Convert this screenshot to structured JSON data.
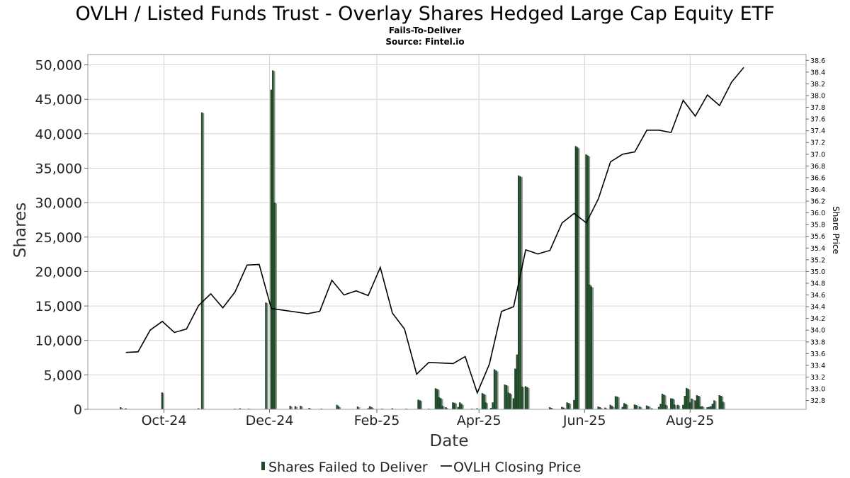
{
  "chart_data": {
    "type": "bar",
    "title": "OVLH / Listed Funds Trust - Overlay Shares Hedged Large Cap Equity ETF",
    "subtitle_lines": [
      "Fails-To-Deliver",
      "Source: Fintel.io"
    ],
    "xlabel": "Date",
    "ylabel": "Shares",
    "y2label": "Share Price",
    "ylim": [
      0,
      51500
    ],
    "yticks": [
      0,
      5000,
      10000,
      15000,
      20000,
      25000,
      30000,
      35000,
      40000,
      45000,
      50000
    ],
    "ytick_labels": [
      "0",
      "5,000",
      "10,000",
      "15,000",
      "20,000",
      "25,000",
      "30,000",
      "35,000",
      "40,000",
      "45,000",
      "50,000"
    ],
    "y2lim": [
      32.65,
      38.7
    ],
    "y2ticks": [
      32.8,
      33.0,
      33.2,
      33.4,
      33.6,
      33.8,
      34.0,
      34.2,
      34.4,
      34.6,
      34.8,
      35.0,
      35.2,
      35.4,
      35.6,
      35.8,
      36.0,
      36.2,
      36.4,
      36.6,
      36.8,
      37.0,
      37.2,
      37.4,
      37.6,
      37.8,
      38.0,
      38.2,
      38.4,
      38.6
    ],
    "xlim": [
      "2024-08-18",
      "2025-10-07"
    ],
    "xticks": [
      {
        "date": "2024-10-01",
        "label": "Oct-24"
      },
      {
        "date": "2024-12-01",
        "label": "Dec-24"
      },
      {
        "date": "2025-02-01",
        "label": "Feb-25"
      },
      {
        "date": "2025-04-01",
        "label": "Apr-25"
      },
      {
        "date": "2025-06-01",
        "label": "Jun-25"
      },
      {
        "date": "2025-08-01",
        "label": "Aug-25"
      }
    ],
    "grid": true,
    "legend": {
      "placement": "bottom",
      "entries": [
        {
          "name": "Shares Failed to Deliver",
          "type": "bar"
        },
        {
          "name": "OVLH Closing Price",
          "type": "line"
        }
      ]
    },
    "colors": {
      "bar": "#1e4a28",
      "bar_shadow": "#8c8c8c",
      "line": "#000000",
      "grid": "#d4d4d4",
      "frame": "#999999"
    },
    "series": [
      {
        "name": "Shares Failed to Deliver",
        "axis": "left",
        "type": "bar",
        "points": [
          {
            "x": "2024-09-06",
            "y": 300
          },
          {
            "x": "2024-09-09",
            "y": 150
          },
          {
            "x": "2024-09-30",
            "y": 2450
          },
          {
            "x": "2024-10-21",
            "y": 150
          },
          {
            "x": "2024-10-23",
            "y": 43100
          },
          {
            "x": "2024-11-11",
            "y": 100
          },
          {
            "x": "2024-11-14",
            "y": 150
          },
          {
            "x": "2024-11-19",
            "y": 100
          },
          {
            "x": "2024-11-29",
            "y": 15500
          },
          {
            "x": "2024-12-02",
            "y": 46400
          },
          {
            "x": "2024-12-03",
            "y": 49200
          },
          {
            "x": "2024-12-04",
            "y": 30000
          },
          {
            "x": "2024-12-13",
            "y": 500
          },
          {
            "x": "2024-12-16",
            "y": 450
          },
          {
            "x": "2024-12-19",
            "y": 500
          },
          {
            "x": "2024-12-24",
            "y": 200
          },
          {
            "x": "2024-12-31",
            "y": 100
          },
          {
            "x": "2025-01-09",
            "y": 650
          },
          {
            "x": "2025-01-10",
            "y": 400
          },
          {
            "x": "2025-01-21",
            "y": 400
          },
          {
            "x": "2025-01-27",
            "y": 150
          },
          {
            "x": "2025-01-28",
            "y": 450
          },
          {
            "x": "2025-01-29",
            "y": 300
          },
          {
            "x": "2025-02-04",
            "y": 100
          },
          {
            "x": "2025-02-10",
            "y": 150
          },
          {
            "x": "2025-02-18",
            "y": 100
          },
          {
            "x": "2025-02-25",
            "y": 1400
          },
          {
            "x": "2025-02-26",
            "y": 1300
          },
          {
            "x": "2025-03-03",
            "y": 100
          },
          {
            "x": "2025-03-07",
            "y": 3050
          },
          {
            "x": "2025-03-08",
            "y": 2950
          },
          {
            "x": "2025-03-09",
            "y": 1750
          },
          {
            "x": "2025-03-10",
            "y": 1600
          },
          {
            "x": "2025-03-11",
            "y": 500
          },
          {
            "x": "2025-03-13",
            "y": 300
          },
          {
            "x": "2025-03-17",
            "y": 1000
          },
          {
            "x": "2025-03-18",
            "y": 950
          },
          {
            "x": "2025-03-20",
            "y": 350
          },
          {
            "x": "2025-03-21",
            "y": 1000
          },
          {
            "x": "2025-03-22",
            "y": 750
          },
          {
            "x": "2025-03-28",
            "y": 100
          },
          {
            "x": "2025-03-31",
            "y": 150
          },
          {
            "x": "2025-04-03",
            "y": 2350
          },
          {
            "x": "2025-04-04",
            "y": 2200
          },
          {
            "x": "2025-04-05",
            "y": 1000
          },
          {
            "x": "2025-04-08",
            "y": 200
          },
          {
            "x": "2025-04-09",
            "y": 1000
          },
          {
            "x": "2025-04-10",
            "y": 5800
          },
          {
            "x": "2025-04-11",
            "y": 5600
          },
          {
            "x": "2025-04-16",
            "y": 3600
          },
          {
            "x": "2025-04-17",
            "y": 3500
          },
          {
            "x": "2025-04-18",
            "y": 2450
          },
          {
            "x": "2025-04-19",
            "y": 2300
          },
          {
            "x": "2025-04-21",
            "y": 1600
          },
          {
            "x": "2025-04-22",
            "y": 5900
          },
          {
            "x": "2025-04-23",
            "y": 7950
          },
          {
            "x": "2025-04-24",
            "y": 33950
          },
          {
            "x": "2025-04-25",
            "y": 33800
          },
          {
            "x": "2025-04-26",
            "y": 3300
          },
          {
            "x": "2025-04-28",
            "y": 3350
          },
          {
            "x": "2025-04-29",
            "y": 3200
          },
          {
            "x": "2025-05-12",
            "y": 300
          },
          {
            "x": "2025-05-13",
            "y": 200
          },
          {
            "x": "2025-05-19",
            "y": 350
          },
          {
            "x": "2025-05-20",
            "y": 250
          },
          {
            "x": "2025-05-22",
            "y": 1000
          },
          {
            "x": "2025-05-23",
            "y": 900
          },
          {
            "x": "2025-05-26",
            "y": 1350
          },
          {
            "x": "2025-05-27",
            "y": 38200
          },
          {
            "x": "2025-05-28",
            "y": 38000
          },
          {
            "x": "2025-06-02",
            "y": 37000
          },
          {
            "x": "2025-06-03",
            "y": 36800
          },
          {
            "x": "2025-06-04",
            "y": 18100
          },
          {
            "x": "2025-06-05",
            "y": 17800
          },
          {
            "x": "2025-06-09",
            "y": 400
          },
          {
            "x": "2025-06-10",
            "y": 300
          },
          {
            "x": "2025-06-13",
            "y": 250
          },
          {
            "x": "2025-06-16",
            "y": 650
          },
          {
            "x": "2025-06-17",
            "y": 450
          },
          {
            "x": "2025-06-19",
            "y": 1900
          },
          {
            "x": "2025-06-20",
            "y": 1850
          },
          {
            "x": "2025-06-23",
            "y": 350
          },
          {
            "x": "2025-06-24",
            "y": 900
          },
          {
            "x": "2025-06-25",
            "y": 750
          },
          {
            "x": "2025-06-30",
            "y": 700
          },
          {
            "x": "2025-07-01",
            "y": 600
          },
          {
            "x": "2025-07-03",
            "y": 400
          },
          {
            "x": "2025-07-07",
            "y": 550
          },
          {
            "x": "2025-07-08",
            "y": 450
          },
          {
            "x": "2025-07-10",
            "y": 150
          },
          {
            "x": "2025-07-14",
            "y": 350
          },
          {
            "x": "2025-07-15",
            "y": 800
          },
          {
            "x": "2025-07-16",
            "y": 2250
          },
          {
            "x": "2025-07-17",
            "y": 2100
          },
          {
            "x": "2025-07-18",
            "y": 650
          },
          {
            "x": "2025-07-21",
            "y": 1600
          },
          {
            "x": "2025-07-22",
            "y": 1550
          },
          {
            "x": "2025-07-23",
            "y": 700
          },
          {
            "x": "2025-07-25",
            "y": 650
          },
          {
            "x": "2025-07-28",
            "y": 650
          },
          {
            "x": "2025-07-29",
            "y": 1950
          },
          {
            "x": "2025-07-30",
            "y": 3100
          },
          {
            "x": "2025-07-31",
            "y": 2950
          },
          {
            "x": "2025-08-01",
            "y": 1000
          },
          {
            "x": "2025-08-02",
            "y": 1550
          },
          {
            "x": "2025-08-04",
            "y": 1300
          },
          {
            "x": "2025-08-05",
            "y": 2050
          },
          {
            "x": "2025-08-06",
            "y": 1950
          },
          {
            "x": "2025-08-07",
            "y": 400
          },
          {
            "x": "2025-08-08",
            "y": 450
          },
          {
            "x": "2025-08-11",
            "y": 300
          },
          {
            "x": "2025-08-12",
            "y": 350
          },
          {
            "x": "2025-08-13",
            "y": 450
          },
          {
            "x": "2025-08-14",
            "y": 800
          },
          {
            "x": "2025-08-15",
            "y": 1300
          },
          {
            "x": "2025-08-18",
            "y": 2050
          },
          {
            "x": "2025-08-19",
            "y": 1950
          },
          {
            "x": "2025-08-20",
            "y": 1100
          }
        ]
      },
      {
        "name": "OVLH Closing Price",
        "axis": "right",
        "type": "line",
        "points": [
          {
            "x": "2024-09-09",
            "y": 33.62
          },
          {
            "x": "2024-09-16",
            "y": 33.63
          },
          {
            "x": "2024-09-23",
            "y": 34.0
          },
          {
            "x": "2024-09-30",
            "y": 34.15
          },
          {
            "x": "2024-10-07",
            "y": 33.96
          },
          {
            "x": "2024-10-14",
            "y": 34.02
          },
          {
            "x": "2024-10-21",
            "y": 34.42
          },
          {
            "x": "2024-10-28",
            "y": 34.62
          },
          {
            "x": "2024-11-04",
            "y": 34.38
          },
          {
            "x": "2024-11-11",
            "y": 34.65
          },
          {
            "x": "2024-11-18",
            "y": 35.11
          },
          {
            "x": "2024-11-25",
            "y": 35.12
          },
          {
            "x": "2024-12-02",
            "y": 34.37
          },
          {
            "x": "2024-12-23",
            "y": 34.28
          },
          {
            "x": "2024-12-30",
            "y": 34.32
          },
          {
            "x": "2025-01-06",
            "y": 34.85
          },
          {
            "x": "2025-01-13",
            "y": 34.6
          },
          {
            "x": "2025-01-20",
            "y": 34.67
          },
          {
            "x": "2025-01-27",
            "y": 34.59
          },
          {
            "x": "2025-02-03",
            "y": 35.07
          },
          {
            "x": "2025-02-10",
            "y": 34.29
          },
          {
            "x": "2025-02-17",
            "y": 34.02
          },
          {
            "x": "2025-02-24",
            "y": 33.25
          },
          {
            "x": "2025-03-03",
            "y": 33.45
          },
          {
            "x": "2025-03-17",
            "y": 33.43
          },
          {
            "x": "2025-03-24",
            "y": 33.55
          },
          {
            "x": "2025-03-31",
            "y": 32.93
          },
          {
            "x": "2025-04-07",
            "y": 33.42
          },
          {
            "x": "2025-04-14",
            "y": 34.32
          },
          {
            "x": "2025-04-21",
            "y": 34.4
          },
          {
            "x": "2025-04-28",
            "y": 35.37
          },
          {
            "x": "2025-05-05",
            "y": 35.3
          },
          {
            "x": "2025-05-12",
            "y": 35.36
          },
          {
            "x": "2025-05-19",
            "y": 35.83
          },
          {
            "x": "2025-05-26",
            "y": 35.99
          },
          {
            "x": "2025-06-02",
            "y": 35.83
          },
          {
            "x": "2025-06-09",
            "y": 36.24
          },
          {
            "x": "2025-06-16",
            "y": 36.87
          },
          {
            "x": "2025-06-23",
            "y": 37.0
          },
          {
            "x": "2025-06-30",
            "y": 37.04
          },
          {
            "x": "2025-07-07",
            "y": 37.41
          },
          {
            "x": "2025-07-14",
            "y": 37.41
          },
          {
            "x": "2025-07-21",
            "y": 37.37
          },
          {
            "x": "2025-07-28",
            "y": 37.92
          },
          {
            "x": "2025-08-04",
            "y": 37.65
          },
          {
            "x": "2025-08-11",
            "y": 38.01
          },
          {
            "x": "2025-08-18",
            "y": 37.83
          },
          {
            "x": "2025-08-25",
            "y": 38.23
          },
          {
            "x": "2025-09-01",
            "y": 38.48
          }
        ]
      }
    ]
  }
}
